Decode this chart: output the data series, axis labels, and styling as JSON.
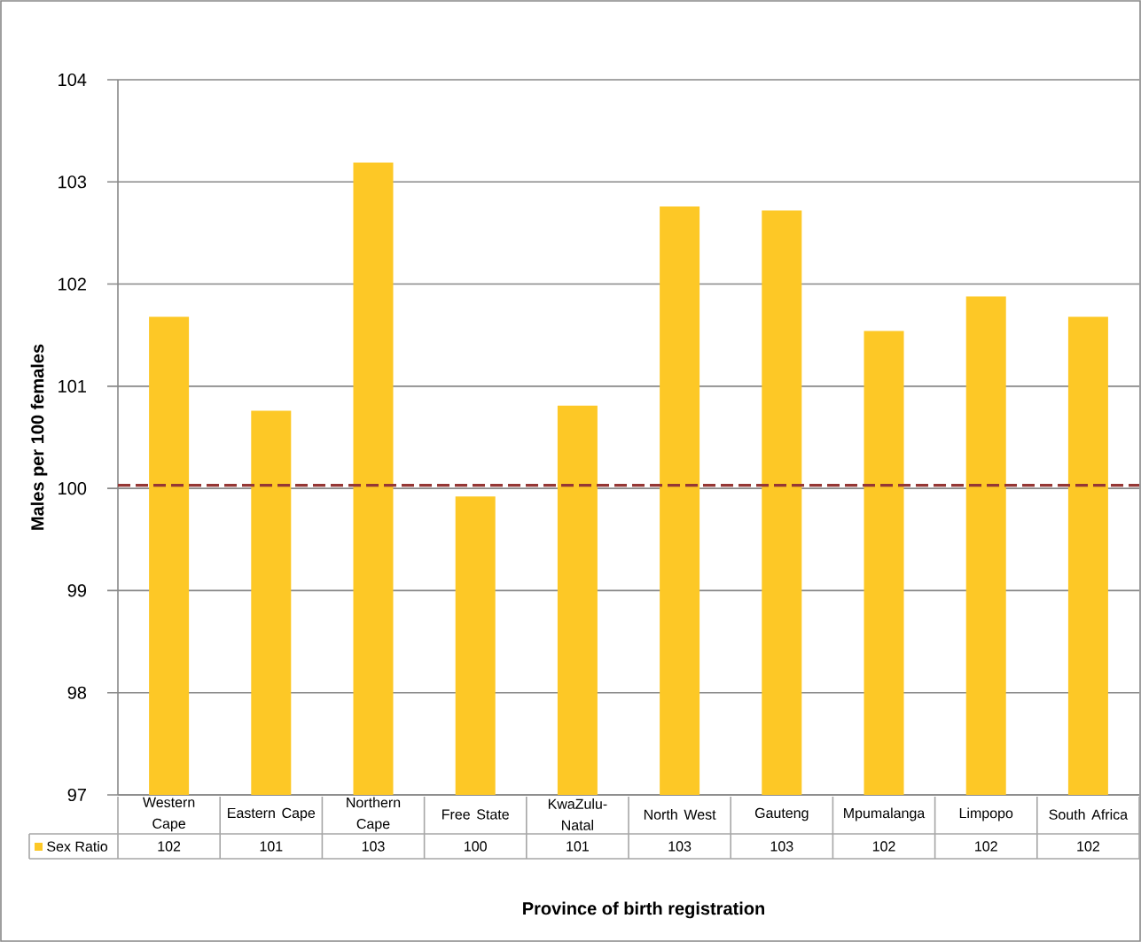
{
  "chart_data": {
    "type": "bar",
    "xlabel": "Province of birth registration",
    "ylabel": "Males per 100 females",
    "categories": [
      "Western Cape",
      "Eastern Cape",
      "Northern Cape",
      "Free State",
      "KwaZulu-Natal",
      "North West",
      "Gauteng",
      "Mpumalanga",
      "Limpopo",
      "South Africa"
    ],
    "series": [
      {
        "name": "Sex Ratio",
        "color": "#fdc826",
        "values": [
          101.68,
          100.76,
          103.19,
          99.92,
          100.81,
          102.76,
          102.72,
          101.54,
          101.88,
          101.68
        ],
        "value_labels": [
          "102",
          "101",
          "103",
          "100",
          "101",
          "103",
          "103",
          "102",
          "102",
          "102"
        ]
      }
    ],
    "ylim": [
      97,
      104
    ],
    "yticks": [
      97,
      98,
      99,
      100,
      101,
      102,
      103,
      104
    ],
    "grid": "y",
    "legend": "bottom",
    "ref_lines": [
      {
        "axis": "y",
        "value": 100.03,
        "color": "#953735",
        "line_style": "dashed"
      }
    ]
  }
}
